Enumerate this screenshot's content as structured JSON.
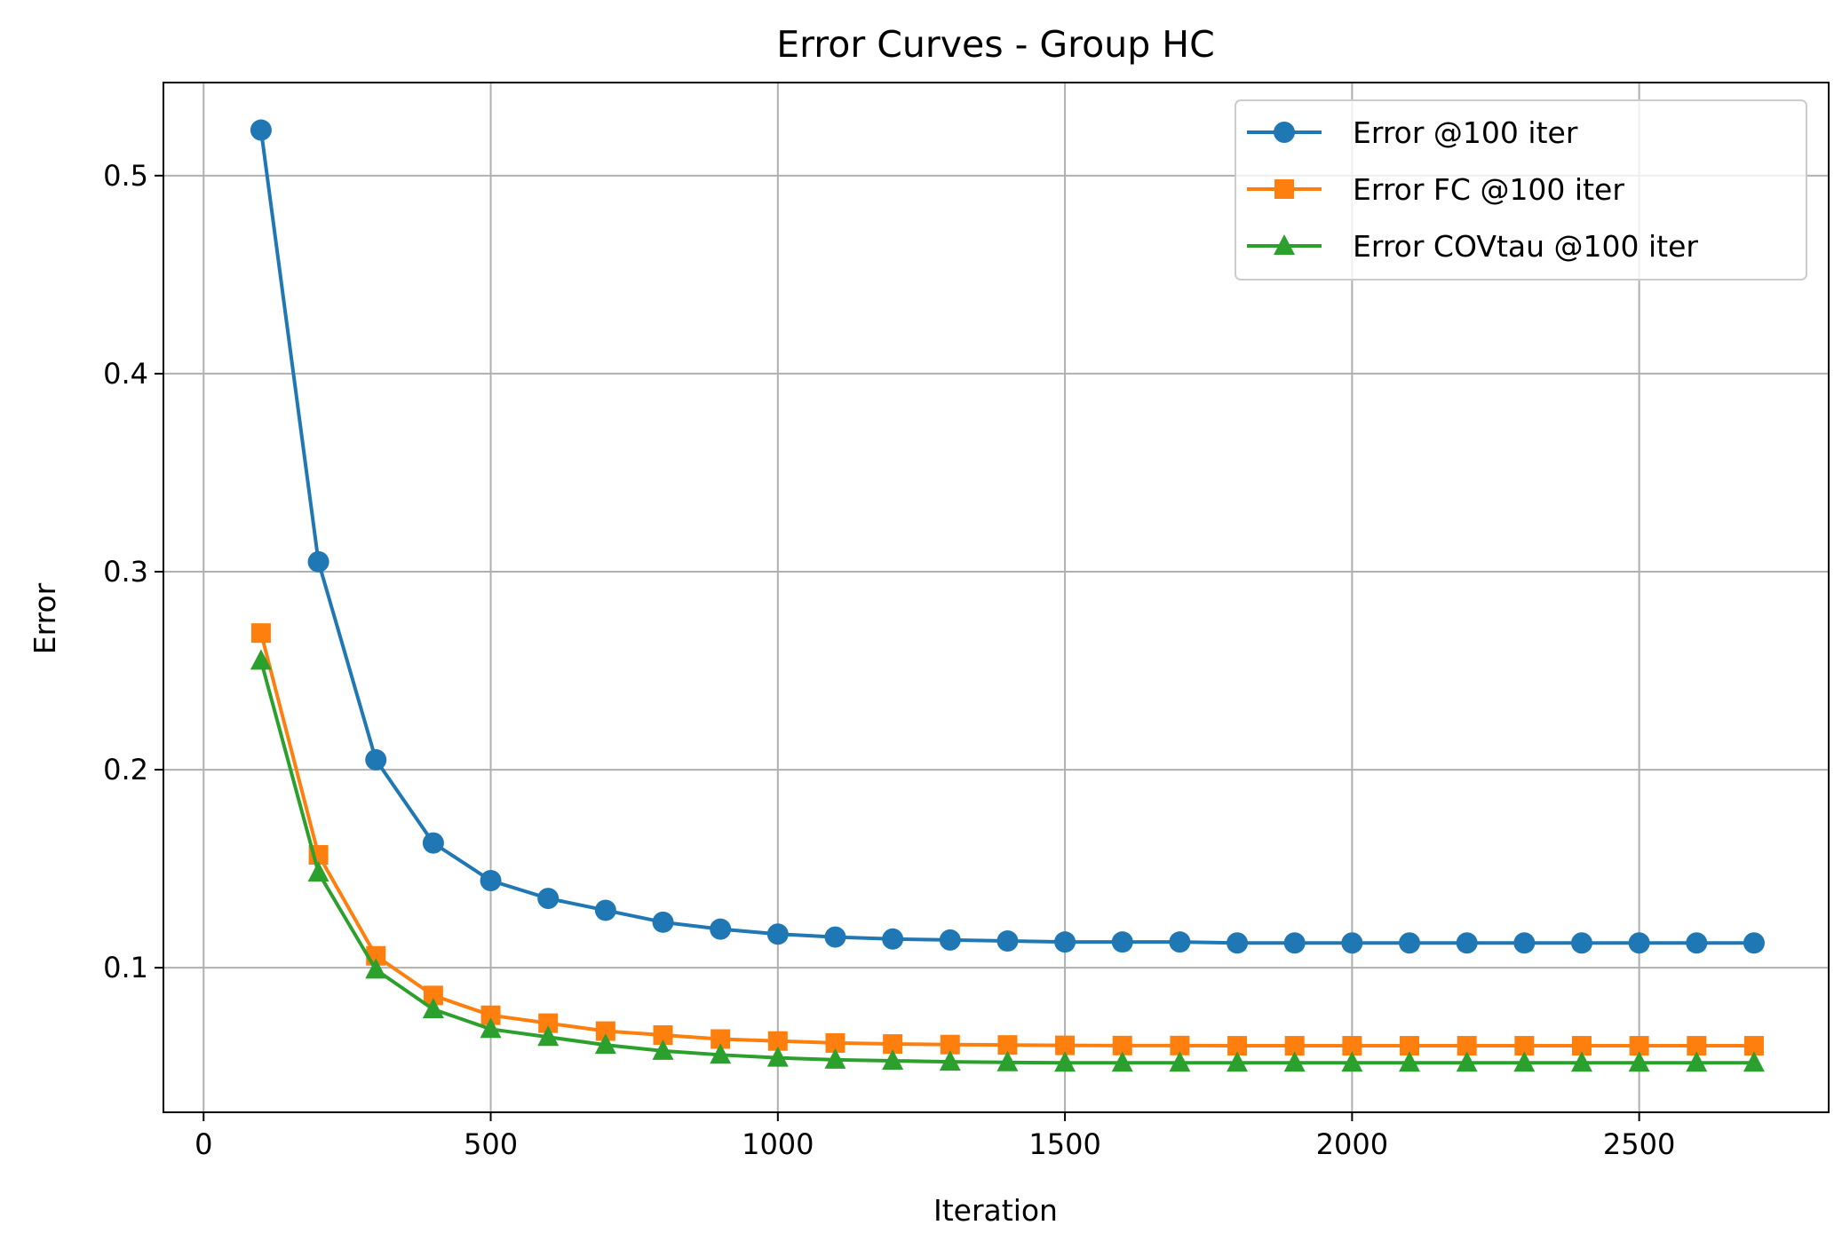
{
  "chart_data": {
    "type": "line",
    "title": "Error Curves - Group HC",
    "xlabel": "Iteration",
    "ylabel": "Error",
    "xlim": [
      -70,
      2830
    ],
    "ylim": [
      0.027,
      0.547
    ],
    "xticks": [
      0,
      500,
      1000,
      1500,
      2000,
      2500
    ],
    "xtick_labels": [
      "0",
      "500",
      "1000",
      "1500",
      "2000",
      "2500"
    ],
    "yticks": [
      0.1,
      0.2,
      0.3,
      0.4,
      0.5
    ],
    "ytick_labels": [
      "0.1",
      "0.2",
      "0.3",
      "0.4",
      "0.5"
    ],
    "grid": true,
    "legend_position": "top-right",
    "x": [
      100,
      200,
      300,
      400,
      500,
      600,
      700,
      800,
      900,
      1000,
      1100,
      1200,
      1300,
      1400,
      1500,
      1600,
      1700,
      1800,
      1900,
      2000,
      2100,
      2200,
      2300,
      2400,
      2500,
      2600,
      2700
    ],
    "series": [
      {
        "name": "Error @100 iter",
        "color": "#1f77b4",
        "marker": "circle",
        "values": [
          0.523,
          0.305,
          0.205,
          0.163,
          0.144,
          0.135,
          0.129,
          0.123,
          0.1195,
          0.117,
          0.1155,
          0.1145,
          0.114,
          0.1135,
          0.113,
          0.113,
          0.113,
          0.1125,
          0.1125,
          0.1125,
          0.1125,
          0.1125,
          0.1125,
          0.1125,
          0.1125,
          0.1125,
          0.1125
        ]
      },
      {
        "name": "Error FC @100 iter",
        "color": "#ff7f0e",
        "marker": "square",
        "values": [
          0.269,
          0.157,
          0.106,
          0.086,
          0.076,
          0.072,
          0.068,
          0.066,
          0.064,
          0.063,
          0.062,
          0.0615,
          0.0612,
          0.061,
          0.0608,
          0.0607,
          0.0607,
          0.0606,
          0.0606,
          0.0606,
          0.0606,
          0.0606,
          0.0606,
          0.0606,
          0.0606,
          0.0606,
          0.0606
        ]
      },
      {
        "name": "Error COVtau @100 iter",
        "color": "#2ca02c",
        "marker": "triangle",
        "values": [
          0.255,
          0.148,
          0.099,
          0.079,
          0.069,
          0.065,
          0.061,
          0.058,
          0.056,
          0.0545,
          0.0535,
          0.053,
          0.0525,
          0.0522,
          0.052,
          0.052,
          0.052,
          0.052,
          0.052,
          0.052,
          0.052,
          0.052,
          0.052,
          0.052,
          0.052,
          0.052,
          0.052
        ]
      }
    ]
  }
}
